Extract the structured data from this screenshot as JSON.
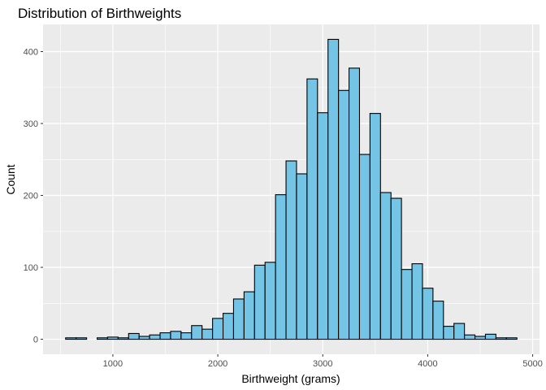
{
  "chart_data": {
    "type": "bar",
    "title": "Distribution of Birthweights",
    "xlabel": "Birthweight (grams)",
    "ylabel": "Count",
    "bin_width": 100,
    "x_bin_starts": [
      550,
      650,
      750,
      850,
      950,
      1050,
      1150,
      1250,
      1350,
      1450,
      1550,
      1650,
      1750,
      1850,
      1950,
      2050,
      2150,
      2250,
      2350,
      2450,
      2550,
      2650,
      2750,
      2850,
      2950,
      3050,
      3150,
      3250,
      3350,
      3450,
      3550,
      3650,
      3750,
      3850,
      3950,
      4050,
      4150,
      4250,
      4350,
      4450,
      4550,
      4650,
      4750
    ],
    "values": [
      2,
      2,
      0,
      2,
      3,
      2,
      8,
      4,
      6,
      9,
      11,
      9,
      19,
      14,
      29,
      36,
      56,
      66,
      103,
      107,
      201,
      248,
      230,
      362,
      315,
      417,
      346,
      377,
      257,
      314,
      204,
      196,
      97,
      105,
      71,
      53,
      18,
      22,
      6,
      4,
      7,
      2,
      2
    ],
    "xlim": [
      550,
      4850
    ],
    "ylim": [
      0,
      417
    ],
    "x_ticks": [
      1000,
      2000,
      3000,
      4000,
      5000
    ],
    "x_tick_labels": [
      "1000",
      "2000",
      "3000",
      "4000",
      "5000"
    ],
    "y_ticks": [
      0,
      100,
      200,
      300,
      400
    ],
    "y_tick_labels": [
      "0",
      "100",
      "200",
      "300",
      "400"
    ],
    "grid": true,
    "legend": "none",
    "colors": {
      "bar_fill": "#74C4E6",
      "bar_stroke": "#000000",
      "panel_background": "#EBEBEB",
      "grid": "#FFFFFF"
    }
  }
}
